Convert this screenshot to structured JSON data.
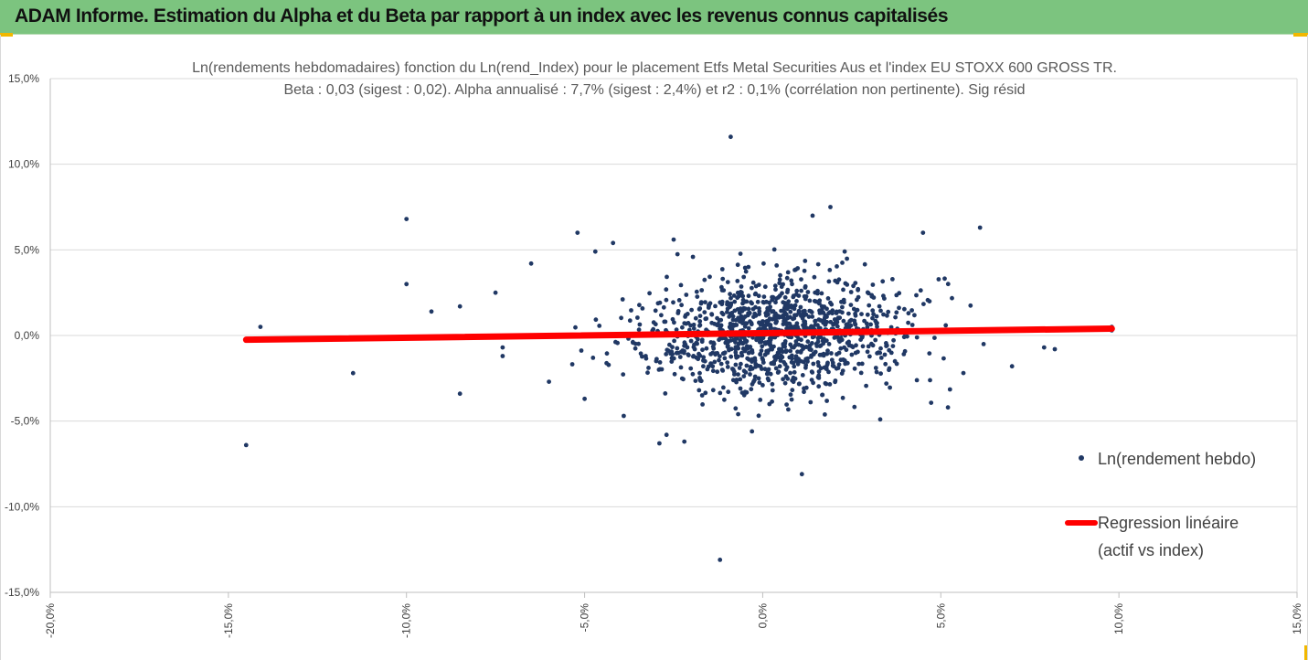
{
  "header": {
    "title": "ADAM Informe. Estimation du Alpha et du Beta par rapport à un index avec les revenus connus capitalisés"
  },
  "colors": {
    "header_bg": "#7cc47f",
    "accent_marks": "#f2b800",
    "scatter": "#203864",
    "regression": "#ff0000",
    "gridline": "#d9d9d9"
  },
  "chart_data": {
    "type": "scatter",
    "title_lines": [
      "Ln(rendements hebdomadaires) fonction du Ln(rend_Index) pour le placement Etfs Metal Securities Aus et l'index EU STOXX 600 GROSS TR.",
      "Beta : 0,03 (sigest : 0,02). Alpha annualisé : 7,7% (sigest : 2,4%) et r2 : 0,1% (corrélation non pertinente). Sig résid"
    ],
    "xlim": [
      -0.2,
      0.15
    ],
    "ylim": [
      -0.15,
      0.15
    ],
    "x_ticks": [
      -0.2,
      -0.15,
      -0.1,
      -0.05,
      0.0,
      0.05,
      0.1,
      0.15
    ],
    "x_tick_labels": [
      "-20,0%",
      "-15,0%",
      "-10,0%",
      "-5,0%",
      "0,0%",
      "5,0%",
      "10,0%",
      "15,0%"
    ],
    "y_ticks": [
      0.15,
      0.1,
      0.05,
      0.0,
      -0.05,
      -0.1,
      -0.15
    ],
    "y_tick_labels": [
      "15,0%",
      "10,0%",
      "5,0%",
      "0,0%",
      "-5,0%",
      "-10,0%",
      "-15,0%"
    ],
    "grid": "horizontal",
    "legend_position": "right",
    "series": [
      {
        "name": "Ln(rendement hebdo)",
        "kind": "points",
        "outlier_points": [
          [
            -0.145,
            -0.064
          ],
          [
            -0.141,
            0.005
          ],
          [
            -0.115,
            -0.022
          ],
          [
            -0.1,
            0.068
          ],
          [
            -0.1,
            0.03
          ],
          [
            -0.093,
            0.014
          ],
          [
            -0.085,
            0.017
          ],
          [
            -0.085,
            -0.034
          ],
          [
            -0.075,
            0.025
          ],
          [
            -0.073,
            -0.007
          ],
          [
            -0.073,
            -0.012
          ],
          [
            -0.065,
            0.042
          ],
          [
            -0.06,
            -0.027
          ],
          [
            -0.052,
            0.06
          ],
          [
            -0.05,
            -0.037
          ],
          [
            -0.047,
            0.049
          ],
          [
            -0.042,
            0.054
          ],
          [
            -0.039,
            -0.047
          ],
          [
            -0.029,
            -0.063
          ],
          [
            -0.027,
            -0.058
          ],
          [
            -0.025,
            0.056
          ],
          [
            -0.022,
            -0.062
          ],
          [
            -0.009,
            0.116
          ],
          [
            -0.012,
            -0.131
          ],
          [
            -0.004,
            0.04
          ],
          [
            -0.003,
            -0.056
          ],
          [
            0.011,
            -0.081
          ],
          [
            0.014,
            0.07
          ],
          [
            0.019,
            0.075
          ],
          [
            0.023,
            0.049
          ],
          [
            0.033,
            -0.049
          ],
          [
            0.045,
            0.06
          ],
          [
            0.052,
            -0.042
          ],
          [
            0.061,
            0.063
          ],
          [
            0.062,
            -0.005
          ],
          [
            0.07,
            -0.018
          ],
          [
            0.079,
            -0.007
          ],
          [
            0.082,
            -0.008
          ],
          [
            0.098,
            0.003
          ],
          [
            0.098,
            0.005
          ]
        ],
        "cluster": {
          "count": 1150,
          "mean_x": 0.004,
          "mean_y": 0.001,
          "sd_x": 0.019,
          "sd_y": 0.017
        }
      },
      {
        "name": "Regression linéaire (actif vs index)",
        "kind": "line",
        "points": [
          [
            -0.145,
            -0.0025
          ],
          [
            0.098,
            0.004
          ]
        ]
      }
    ],
    "legend": [
      {
        "label": "Ln(rendement hebdo)",
        "marker": "dot"
      },
      {
        "label_line1": "Regression linéaire",
        "label_line2": "(actif vs index)",
        "marker": "line"
      }
    ]
  }
}
